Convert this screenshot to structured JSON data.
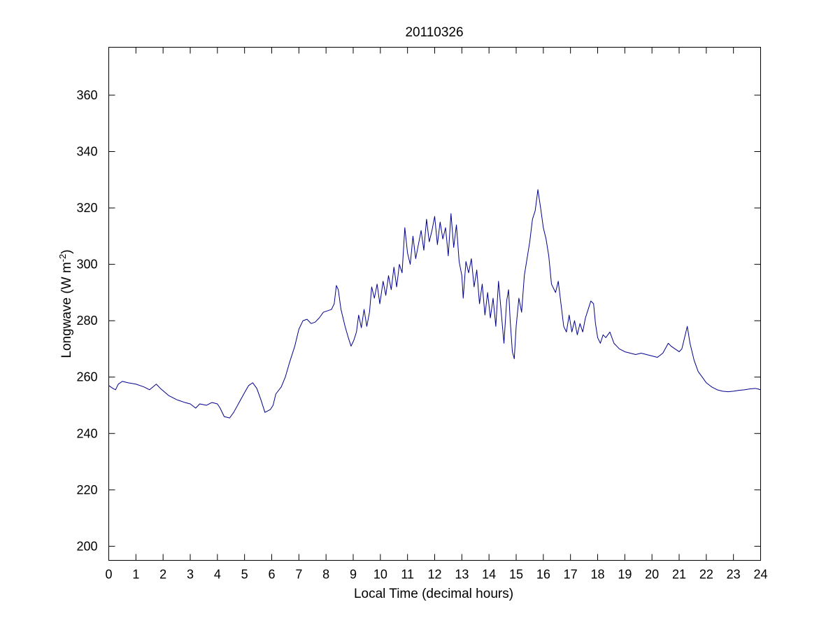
{
  "chart_data": {
    "type": "line",
    "title": "20110326",
    "xlabel": "Local Time (decimal hours)",
    "ylabel_main": "Longwave (W m",
    "ylabel_sup": "-2",
    "ylabel_end": ")",
    "xlim": [
      0,
      24
    ],
    "ylim": [
      195,
      377
    ],
    "x_ticks": [
      0,
      1,
      2,
      3,
      4,
      5,
      6,
      7,
      8,
      9,
      10,
      11,
      12,
      13,
      14,
      15,
      16,
      17,
      18,
      19,
      20,
      21,
      22,
      23,
      24
    ],
    "y_ticks": [
      200,
      220,
      240,
      260,
      280,
      300,
      320,
      340,
      360
    ],
    "grid": false,
    "series": [
      {
        "color": "#00008b",
        "points": [
          [
            0.0,
            257
          ],
          [
            0.15,
            256
          ],
          [
            0.25,
            255.5
          ],
          [
            0.35,
            257.5
          ],
          [
            0.5,
            258.5
          ],
          [
            0.7,
            258
          ],
          [
            1.0,
            257.5
          ],
          [
            1.3,
            256.5
          ],
          [
            1.5,
            255.5
          ],
          [
            1.75,
            257.5
          ],
          [
            1.9,
            256
          ],
          [
            2.2,
            253.5
          ],
          [
            2.5,
            252
          ],
          [
            2.8,
            251
          ],
          [
            3.0,
            250.5
          ],
          [
            3.2,
            249
          ],
          [
            3.35,
            250.5
          ],
          [
            3.6,
            250
          ],
          [
            3.8,
            251
          ],
          [
            4.0,
            250.5
          ],
          [
            4.1,
            249
          ],
          [
            4.25,
            246
          ],
          [
            4.45,
            245.5
          ],
          [
            4.6,
            247.5
          ],
          [
            4.8,
            251
          ],
          [
            5.0,
            254.5
          ],
          [
            5.15,
            257
          ],
          [
            5.3,
            258
          ],
          [
            5.45,
            256
          ],
          [
            5.6,
            252
          ],
          [
            5.75,
            247.5
          ],
          [
            5.95,
            248.5
          ],
          [
            6.05,
            250
          ],
          [
            6.15,
            254
          ],
          [
            6.35,
            256.5
          ],
          [
            6.5,
            260
          ],
          [
            6.65,
            265
          ],
          [
            6.85,
            271
          ],
          [
            7.0,
            277
          ],
          [
            7.15,
            280
          ],
          [
            7.3,
            280.5
          ],
          [
            7.45,
            279
          ],
          [
            7.6,
            279.5
          ],
          [
            7.75,
            281
          ],
          [
            7.9,
            283
          ],
          [
            8.05,
            283.5
          ],
          [
            8.2,
            284
          ],
          [
            8.3,
            286
          ],
          [
            8.38,
            292.5
          ],
          [
            8.45,
            291
          ],
          [
            8.55,
            284
          ],
          [
            8.7,
            278
          ],
          [
            8.82,
            274
          ],
          [
            8.92,
            271
          ],
          [
            9.02,
            273
          ],
          [
            9.12,
            276
          ],
          [
            9.2,
            282
          ],
          [
            9.3,
            277.5
          ],
          [
            9.4,
            284
          ],
          [
            9.5,
            278
          ],
          [
            9.6,
            283
          ],
          [
            9.68,
            292
          ],
          [
            9.78,
            288
          ],
          [
            9.88,
            293
          ],
          [
            9.98,
            286
          ],
          [
            10.1,
            294
          ],
          [
            10.2,
            289
          ],
          [
            10.3,
            296
          ],
          [
            10.4,
            291
          ],
          [
            10.5,
            299
          ],
          [
            10.6,
            292
          ],
          [
            10.7,
            300
          ],
          [
            10.8,
            297
          ],
          [
            10.9,
            313
          ],
          [
            11.0,
            304
          ],
          [
            11.1,
            300
          ],
          [
            11.2,
            310
          ],
          [
            11.3,
            302
          ],
          [
            11.4,
            307
          ],
          [
            11.5,
            312
          ],
          [
            11.6,
            305
          ],
          [
            11.7,
            316
          ],
          [
            11.8,
            308
          ],
          [
            11.9,
            312
          ],
          [
            12.0,
            317
          ],
          [
            12.1,
            307
          ],
          [
            12.2,
            315
          ],
          [
            12.3,
            309
          ],
          [
            12.4,
            313
          ],
          [
            12.5,
            303
          ],
          [
            12.6,
            318
          ],
          [
            12.7,
            306
          ],
          [
            12.8,
            314
          ],
          [
            12.9,
            301
          ],
          [
            13.0,
            296
          ],
          [
            13.05,
            288
          ],
          [
            13.15,
            301
          ],
          [
            13.25,
            297
          ],
          [
            13.35,
            302
          ],
          [
            13.45,
            292
          ],
          [
            13.55,
            298
          ],
          [
            13.65,
            286
          ],
          [
            13.75,
            293
          ],
          [
            13.85,
            282
          ],
          [
            13.95,
            290
          ],
          [
            14.05,
            281
          ],
          [
            14.15,
            288
          ],
          [
            14.25,
            278
          ],
          [
            14.35,
            294
          ],
          [
            14.45,
            283
          ],
          [
            14.55,
            272
          ],
          [
            14.65,
            287
          ],
          [
            14.72,
            291
          ],
          [
            14.78,
            280
          ],
          [
            14.86,
            269
          ],
          [
            14.93,
            266.5
          ],
          [
            15.0,
            278
          ],
          [
            15.1,
            288
          ],
          [
            15.2,
            283
          ],
          [
            15.3,
            296
          ],
          [
            15.4,
            302
          ],
          [
            15.5,
            308
          ],
          [
            15.6,
            316
          ],
          [
            15.7,
            319
          ],
          [
            15.8,
            326.5
          ],
          [
            15.9,
            320
          ],
          [
            16.0,
            313
          ],
          [
            16.1,
            309
          ],
          [
            16.2,
            303
          ],
          [
            16.3,
            293
          ],
          [
            16.45,
            290
          ],
          [
            16.55,
            294
          ],
          [
            16.65,
            286
          ],
          [
            16.75,
            278
          ],
          [
            16.85,
            276
          ],
          [
            16.95,
            282
          ],
          [
            17.05,
            276
          ],
          [
            17.15,
            280
          ],
          [
            17.25,
            275
          ],
          [
            17.35,
            279
          ],
          [
            17.45,
            276
          ],
          [
            17.55,
            281
          ],
          [
            17.65,
            284
          ],
          [
            17.75,
            287
          ],
          [
            17.85,
            286
          ],
          [
            17.92,
            279
          ],
          [
            18.0,
            274
          ],
          [
            18.1,
            272
          ],
          [
            18.2,
            275
          ],
          [
            18.3,
            274
          ],
          [
            18.45,
            276
          ],
          [
            18.6,
            272
          ],
          [
            18.8,
            270
          ],
          [
            19.0,
            269
          ],
          [
            19.2,
            268.5
          ],
          [
            19.4,
            268
          ],
          [
            19.6,
            268.5
          ],
          [
            19.8,
            268
          ],
          [
            20.0,
            267.5
          ],
          [
            20.2,
            267
          ],
          [
            20.4,
            268.5
          ],
          [
            20.6,
            272
          ],
          [
            20.7,
            271
          ],
          [
            20.85,
            270
          ],
          [
            21.0,
            269
          ],
          [
            21.1,
            270
          ],
          [
            21.2,
            274
          ],
          [
            21.3,
            278
          ],
          [
            21.4,
            272
          ],
          [
            21.55,
            266
          ],
          [
            21.7,
            262
          ],
          [
            21.85,
            260
          ],
          [
            22.0,
            258
          ],
          [
            22.2,
            256.5
          ],
          [
            22.4,
            255.5
          ],
          [
            22.6,
            255
          ],
          [
            22.8,
            254.8
          ],
          [
            23.0,
            255
          ],
          [
            23.2,
            255.3
          ],
          [
            23.4,
            255.5
          ],
          [
            23.6,
            255.8
          ],
          [
            23.8,
            256
          ],
          [
            23.9,
            255.8
          ],
          [
            24.0,
            255.5
          ]
        ]
      }
    ]
  }
}
